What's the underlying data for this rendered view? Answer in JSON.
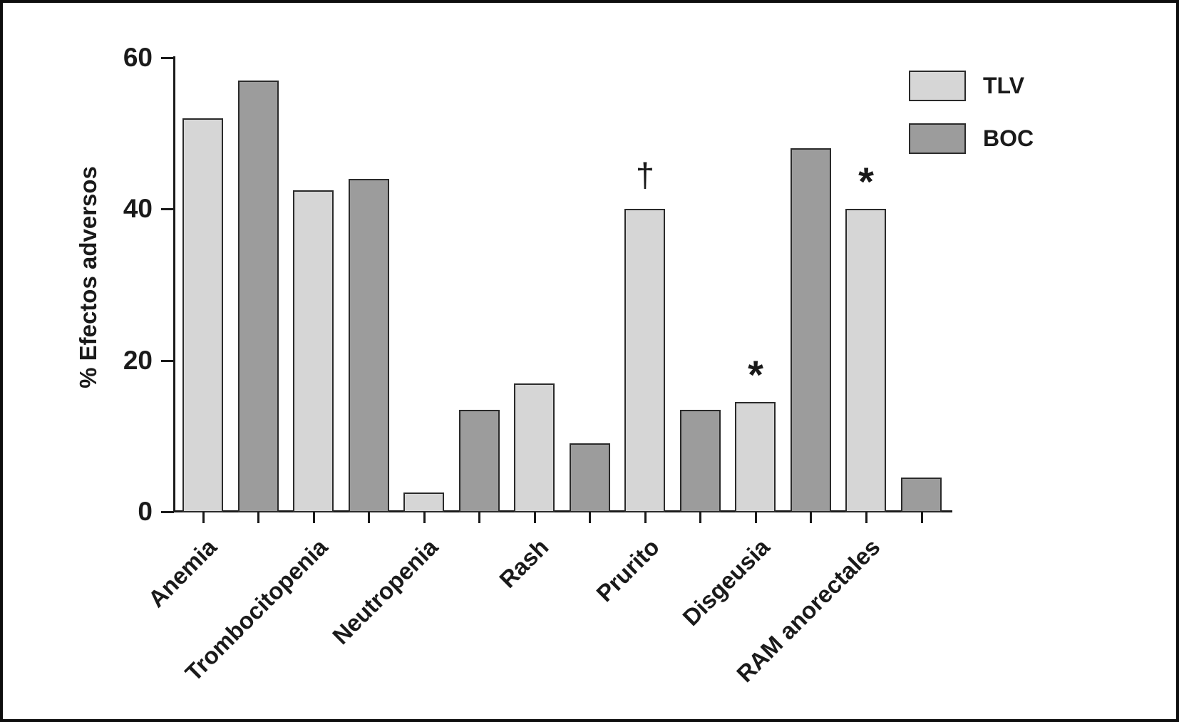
{
  "figure": {
    "background_color": "#ffffff",
    "frame_color": "#0e0e0e",
    "axis_color": "#1a1a1a",
    "bar_border_color": "#2b2b2b"
  },
  "chart_data": {
    "type": "bar",
    "title": "",
    "xlabel": "",
    "ylabel": "% Efectos adversos",
    "ylim": [
      0,
      60
    ],
    "yticks": [
      0,
      20,
      40,
      60
    ],
    "grid": false,
    "legend_position": "top-right",
    "categories": [
      "Anemia",
      "Trombocitopenia",
      "Neutropenia",
      "Rash",
      "Prurito",
      "Disgeusia",
      "RAM anorectales"
    ],
    "series": [
      {
        "name": "TLV",
        "color": "#d6d6d6",
        "values": [
          52,
          42.5,
          2.5,
          17,
          40,
          14.5,
          40
        ]
      },
      {
        "name": "BOC",
        "color": "#9c9c9c",
        "values": [
          57,
          44,
          13.5,
          9,
          13.5,
          48,
          4.5
        ]
      }
    ],
    "annotations": [
      {
        "series": "TLV",
        "category": "Prurito",
        "symbol": "†"
      },
      {
        "series": "TLV",
        "category": "Disgeusia",
        "symbol": "*"
      },
      {
        "series": "TLV",
        "category": "RAM anorectales",
        "symbol": "*"
      }
    ]
  }
}
